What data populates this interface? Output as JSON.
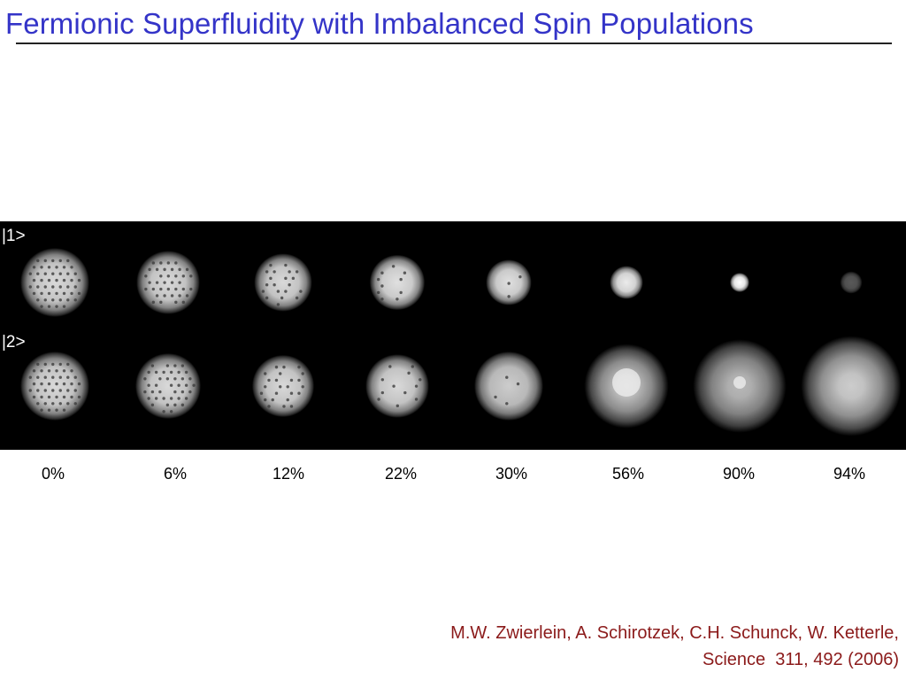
{
  "slide": {
    "title": "Fermionic Superfluidity with Imbalanced Spin Populations",
    "state_labels": [
      "|1>",
      "|2>"
    ],
    "imbalances": [
      "0%",
      "6%",
      "12%",
      "22%",
      "30%",
      "56%",
      "90%",
      "94%"
    ],
    "citation": {
      "line1": "M.W. Zwierlein, A. Schirotzek, C.H. Schunck, W. Ketterle,",
      "line2": "Science  311, 492 (2006)"
    },
    "colors": {
      "title": "#3434c8",
      "citation": "#8b1a1a",
      "panel_bg": "#000000"
    },
    "clouds": {
      "row1": [
        {
          "radius": 1.0,
          "brightness": 0.85,
          "vortices": 1.0
        },
        {
          "radius": 0.92,
          "brightness": 0.85,
          "vortices": 0.9
        },
        {
          "radius": 0.84,
          "brightness": 0.85,
          "vortices": 0.6
        },
        {
          "radius": 0.8,
          "brightness": 0.88,
          "vortices": 0.35
        },
        {
          "radius": 0.66,
          "brightness": 0.88,
          "vortices": 0.15
        },
        {
          "radius": 0.48,
          "brightness": 0.92,
          "vortices": 0.0
        },
        {
          "radius": 0.28,
          "brightness": 1.0,
          "vortices": 0.0
        },
        {
          "radius": 0.32,
          "brightness": 0.35,
          "vortices": 0.0
        }
      ],
      "row2": [
        {
          "radius": 1.0,
          "brightness": 0.85,
          "vortices": 1.0
        },
        {
          "radius": 0.95,
          "brightness": 0.85,
          "vortices": 0.9
        },
        {
          "radius": 0.9,
          "brightness": 0.85,
          "vortices": 0.6
        },
        {
          "radius": 0.92,
          "brightness": 0.85,
          "vortices": 0.3
        },
        {
          "radius": 1.0,
          "brightness": 0.8,
          "vortices": 0.1
        },
        {
          "radius": 1.22,
          "brightness": 0.78,
          "vortices": 0.0
        },
        {
          "radius": 1.35,
          "brightness": 0.72,
          "vortices": 0.0
        },
        {
          "radius": 1.45,
          "brightness": 0.8,
          "vortices": 0.0
        }
      ]
    }
  }
}
